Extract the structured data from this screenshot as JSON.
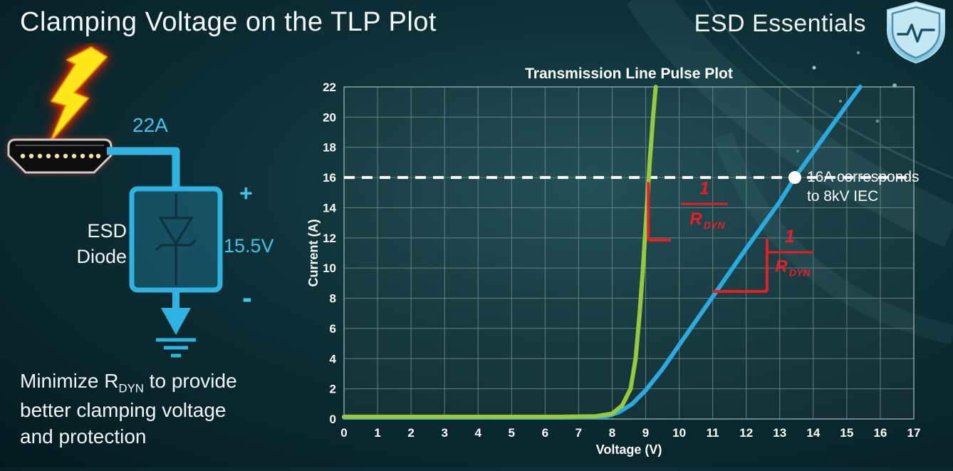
{
  "slide": {
    "title": "Clamping Voltage on the TLP Plot",
    "brand": "ESD Essentials"
  },
  "diagram": {
    "current_label": "22A",
    "plus_label": "+",
    "voltage_label": "15.5V",
    "minus_label": "-",
    "component_label_line1": "ESD",
    "component_label_line2": "Diode",
    "accent_color": "#2fb3e3"
  },
  "caption": {
    "line1_pre": "Minimize R",
    "line1_sub": "DYN",
    "line1_post": " to provide",
    "line2": "better clamping voltage",
    "line3": "and protection"
  },
  "chart_data": {
    "type": "line",
    "title": "Transmission Line Pulse Plot",
    "xlabel": "Voltage (V)",
    "ylabel": "Current (A)",
    "xlim": [
      0,
      17
    ],
    "ylim": [
      0,
      22
    ],
    "x_ticks": [
      0,
      1,
      2,
      3,
      4,
      5,
      6,
      7,
      8,
      9,
      10,
      11,
      12,
      13,
      14,
      15,
      16,
      17
    ],
    "y_ticks": [
      0,
      2,
      4,
      6,
      8,
      10,
      12,
      14,
      16,
      18,
      20,
      22
    ],
    "grid": true,
    "legend": "none",
    "series": [
      {
        "id": "blue-curve",
        "color": "#29abe2",
        "points": [
          [
            0,
            0.1
          ],
          [
            6.5,
            0.1
          ],
          [
            7.8,
            0.15
          ],
          [
            8.2,
            0.45
          ],
          [
            8.6,
            1.0
          ],
          [
            9.0,
            1.9
          ],
          [
            9.5,
            3.3
          ],
          [
            10,
            4.9
          ],
          [
            11,
            8.1
          ],
          [
            12,
            11.3
          ],
          [
            13,
            14.4
          ],
          [
            13.45,
            16
          ],
          [
            14,
            17.7
          ],
          [
            15,
            20.8
          ],
          [
            15.4,
            22
          ]
        ]
      },
      {
        "id": "green-curve",
        "color": "#97c93d",
        "points": [
          [
            0,
            0.15
          ],
          [
            6.5,
            0.15
          ],
          [
            7.5,
            0.18
          ],
          [
            8.0,
            0.35
          ],
          [
            8.3,
            0.9
          ],
          [
            8.55,
            2.0
          ],
          [
            8.7,
            4.0
          ],
          [
            8.82,
            7.0
          ],
          [
            8.92,
            10.0
          ],
          [
            9.02,
            13.5
          ],
          [
            9.12,
            17.0
          ],
          [
            9.22,
            20.0
          ],
          [
            9.3,
            22
          ]
        ]
      }
    ],
    "reference_line": {
      "y": 16,
      "style": "dashed",
      "color": "#ffffff"
    },
    "marker_point": {
      "x": 13.45,
      "y": 16,
      "color": "#ffffff"
    },
    "marker_annotation": {
      "lines": [
        "16A corresponds",
        "to 8kV IEC"
      ],
      "color": "#ffffff"
    },
    "slope_indicators": [
      {
        "color": "#ed1c24",
        "segments": [
          [
            [
              9.08,
              15.7
            ],
            [
              9.08,
              11.85
            ]
          ],
          [
            [
              9.08,
              11.85
            ],
            [
              9.75,
              11.85
            ]
          ]
        ],
        "fraction": {
          "x": 10.75,
          "numerator": "1",
          "den_main": "R",
          "den_sub": "DYN",
          "num_y": 14.9,
          "bar_y": 14.25,
          "den_y": 12.9
        }
      },
      {
        "color": "#ed1c24",
        "segments": [
          [
            [
              11.0,
              8.45
            ],
            [
              12.62,
              8.45
            ]
          ],
          [
            [
              12.62,
              8.45
            ],
            [
              12.62,
              11.95
            ]
          ]
        ],
        "fraction": {
          "x": 13.3,
          "numerator": "1",
          "den_main": "R",
          "den_sub": "DYN",
          "num_y": 11.7,
          "bar_y": 11.05,
          "den_y": 9.75
        }
      }
    ]
  }
}
